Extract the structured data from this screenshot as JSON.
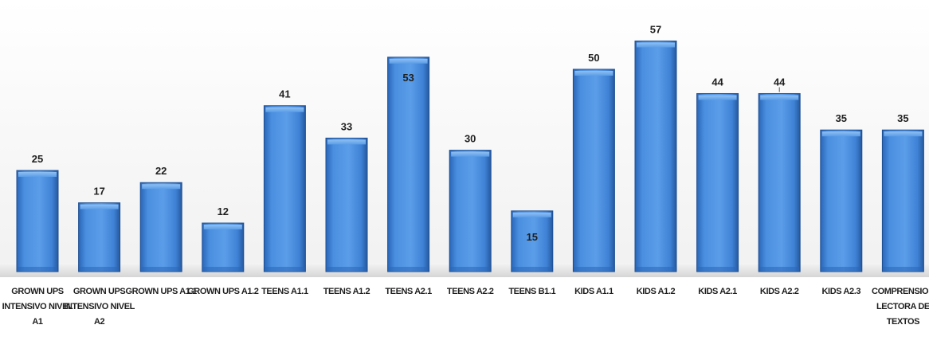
{
  "chart_data": {
    "type": "bar",
    "title": "",
    "xlabel": "",
    "ylabel": "",
    "ylim": [
      0,
      60
    ],
    "grid": false,
    "legend": "none",
    "categories": [
      [
        "GROWN UPS",
        "INTENSIVO NIVEL",
        "A1"
      ],
      [
        "GROWN UPS",
        "INTENSIVO NIVEL",
        "A2"
      ],
      [
        "GROWN UPS A1.1"
      ],
      [
        "GROWN UPS A1.2"
      ],
      [
        "TEENS A1.1"
      ],
      [
        "TEENS A1.2"
      ],
      [
        "TEENS A2.1"
      ],
      [
        "TEENS A2.2"
      ],
      [
        "TEENS B1.1"
      ],
      [
        "KIDS A1.1"
      ],
      [
        "KIDS A1.2"
      ],
      [
        "KIDS A2.1"
      ],
      [
        "KIDS A2.2"
      ],
      [
        "KIDS A2.3"
      ],
      [
        "COMPRENSION",
        "LECTORA DE",
        "TEXTOS"
      ]
    ],
    "values": [
      25,
      17,
      22,
      12,
      41,
      33,
      53,
      30,
      15,
      50,
      57,
      44,
      44,
      35,
      35
    ],
    "colors": {
      "bar_light": "#7fb3ec",
      "bar_mid": "#4a8fe0",
      "bar_dark": "#2a66b8",
      "bar_edge": "#1e4f93",
      "text": "#1f1f1f",
      "floor": "#d9d9d9"
    }
  }
}
